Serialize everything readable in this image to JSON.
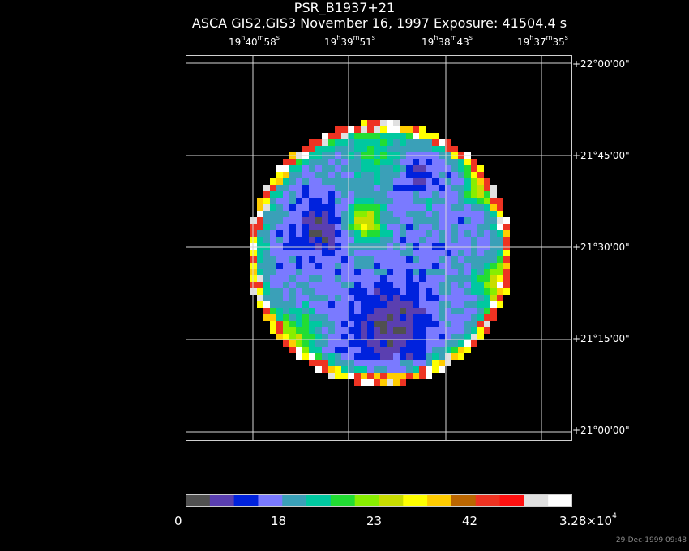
{
  "header": {
    "target": "PSR_B1937+21",
    "observation": "ASCA GIS2,GIS3 November 16, 1997 Exposure: 41504.4 s"
  },
  "ra_ticks": [
    {
      "h": "19",
      "m": "40",
      "s": "58"
    },
    {
      "h": "19",
      "m": "39",
      "s": "51"
    },
    {
      "h": "19",
      "m": "38",
      "s": "43"
    },
    {
      "h": "19",
      "m": "37",
      "s": "35"
    }
  ],
  "dec_ticks": [
    "+22°00'00\"",
    "+21°45'00\"",
    "+21°30'00\"",
    "+21°15'00\"",
    "+21°00'00\""
  ],
  "colorbar": {
    "colors": [
      "#505050",
      "#5a3fb0",
      "#0022dd",
      "#7a7aff",
      "#3aa0b8",
      "#00c8a0",
      "#22dd33",
      "#88ee00",
      "#c8dd00",
      "#ffff00",
      "#ffcc00",
      "#bb6600",
      "#ee3322",
      "#ff1010",
      "#e0e0e0",
      "#ffffff"
    ],
    "labels": [
      "0",
      "18",
      "23",
      "42"
    ],
    "max_label": {
      "base": "3.28×10",
      "exp": "4"
    }
  },
  "footer_timestamp": "29-Dec-1999 09:48"
}
